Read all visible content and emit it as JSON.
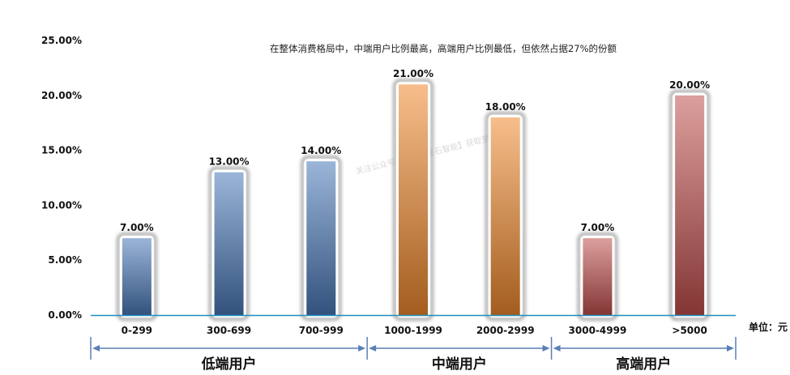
{
  "chart_data": {
    "type": "bar",
    "title": "在整体消费格局中，中端用户比例最高，高端用户比例最低，但依然占据27%的份额",
    "categories": [
      "0-299",
      "300-699",
      "700-999",
      "1000-1999",
      "2000-2999",
      "3000-4999",
      ">5000"
    ],
    "values": [
      7.0,
      13.0,
      14.0,
      21.0,
      18.0,
      7.0,
      20.0
    ],
    "data_labels": [
      "7.00%",
      "13.00%",
      "14.00%",
      "21.00%",
      "18.00%",
      "7.00%",
      "20.00%"
    ],
    "value_unit": "%",
    "ylim": [
      0,
      25
    ],
    "yticks": [
      "0.00%",
      "5.00%",
      "10.00%",
      "15.00%",
      "20.00%",
      "25.00%"
    ],
    "grid": false,
    "unit_label": "单位：元",
    "groups": [
      {
        "name": "低端用户",
        "categories": [
          "0-299",
          "300-699",
          "700-999"
        ],
        "color": "#4a78b8"
      },
      {
        "name": "中端用户",
        "categories": [
          "1000-1999",
          "2000-2999"
        ],
        "color": "#f0892c"
      },
      {
        "name": "高端用户",
        "categories": [
          "3000-4999",
          ">5000"
        ],
        "color": "#c0504d"
      }
    ],
    "bar_colors": [
      "#4a78b8",
      "#4a78b8",
      "#4a78b8",
      "#f0892c",
      "#f0892c",
      "#c0504d",
      "#c0504d"
    ],
    "axis_color": "#1f8fbf",
    "bracket_color": "#5a7fb5"
  },
  "watermark": "关注公众号【数据魔法石智能】获取更多报告"
}
